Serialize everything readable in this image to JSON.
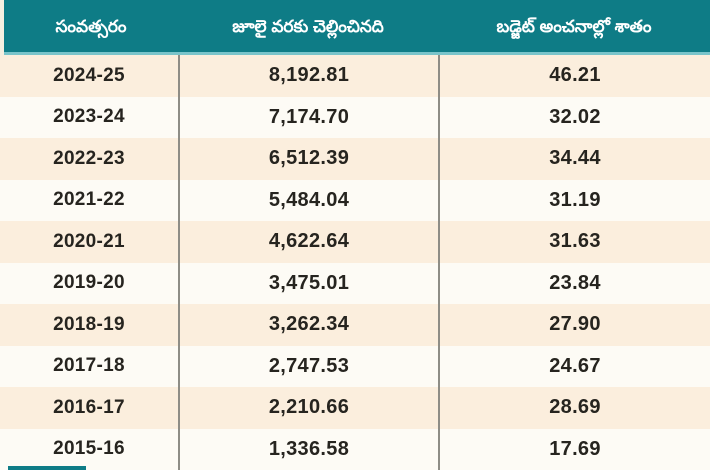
{
  "table": {
    "columns": [
      {
        "label": "సంవత్సరం"
      },
      {
        "label": "జూలై వరకు చెల్లించినది"
      },
      {
        "label": "బడ్జెట్ అంచనాల్లో శాతం"
      }
    ],
    "rows": [
      {
        "year": "2024-25",
        "paid": "8,192.81",
        "pct": "46.21"
      },
      {
        "year": "2023-24",
        "paid": "7,174.70",
        "pct": "32.02"
      },
      {
        "year": "2022-23",
        "paid": "6,512.39",
        "pct": "34.44"
      },
      {
        "year": "2021-22",
        "paid": "5,484.04",
        "pct": "31.19"
      },
      {
        "year": "2020-21",
        "paid": "4,622.64",
        "pct": "31.63"
      },
      {
        "year": "2019-20",
        "paid": "3,475.01",
        "pct": "23.84"
      },
      {
        "year": "2018-19",
        "paid": "3,262.34",
        "pct": "27.90"
      },
      {
        "year": "2017-18",
        "paid": "2,747.53",
        "pct": "24.67"
      },
      {
        "year": "2016-17",
        "paid": "2,210.66",
        "pct": "28.69"
      },
      {
        "year": "2015-16",
        "paid": "1,336.58",
        "pct": "17.69"
      }
    ]
  },
  "chart_data": {
    "type": "table",
    "title": "",
    "columns": [
      "సంవత్సరం",
      "జూలై వరకు చెల్లించినది",
      "బడ్జెట్ అంచనాల్లో శాతం"
    ],
    "rows": [
      [
        "2024-25",
        8192.81,
        46.21
      ],
      [
        "2023-24",
        7174.7,
        32.02
      ],
      [
        "2022-23",
        6512.39,
        34.44
      ],
      [
        "2021-22",
        5484.04,
        31.19
      ],
      [
        "2020-21",
        4622.64,
        31.63
      ],
      [
        "2019-20",
        3475.01,
        23.84
      ],
      [
        "2018-19",
        3262.34,
        27.9
      ],
      [
        "2017-18",
        2747.53,
        24.67
      ],
      [
        "2016-17",
        2210.66,
        28.69
      ],
      [
        "2015-16",
        1336.58,
        17.69
      ]
    ]
  },
  "colors": {
    "header_bg": "#0e7c86",
    "header_underline": "#79c4ca",
    "row_odd_bg": "#fbeedd",
    "row_even_bg": "#fdfbf5",
    "divider": "#8e8d86",
    "text": "#26241f",
    "page_bg": "#f6efe0",
    "accent_strip": "#0e7c86"
  }
}
